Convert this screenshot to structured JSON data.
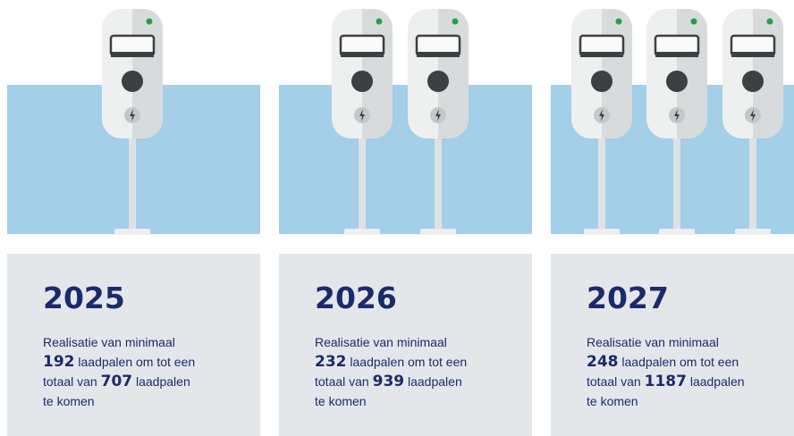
{
  "panels": [
    {
      "year": "2025",
      "line1": "Realisatie van minimaal",
      "added": "192",
      "line2": "laadpalen om tot een",
      "line3a": "totaal van",
      "total": "707",
      "line3b": "laadpalen",
      "line4": "te komen"
    },
    {
      "year": "2026",
      "line1": "Realisatie van minimaal",
      "added": "232",
      "line2": "laadpalen om tot een",
      "line3a": "totaal van",
      "total": "939",
      "line3b": "laadpalen",
      "line4": "te komen"
    },
    {
      "year": "2027",
      "line1": "Realisatie van minimaal",
      "added": "248",
      "line2": "laadpalen om tot een",
      "line3a": "totaal van",
      "total": "1187",
      "line3b": "laadpalen",
      "line4": "te komen"
    }
  ]
}
